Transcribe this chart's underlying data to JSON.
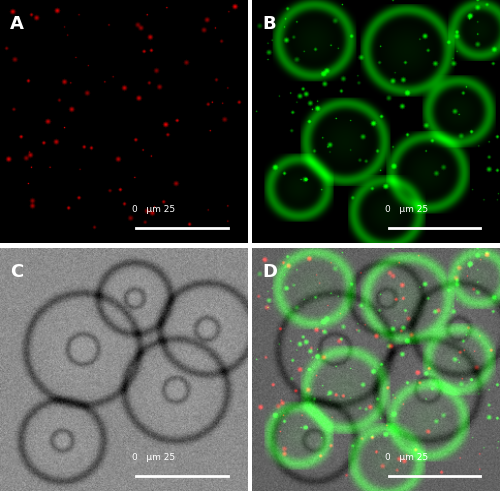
{
  "fig_width": 5.0,
  "fig_height": 4.91,
  "dpi": 100,
  "panels": [
    "A",
    "B",
    "C",
    "D"
  ],
  "panel_label_color": "white",
  "panel_label_fontsize": 13,
  "scale_bar_color": "white",
  "scale_bar_text": "0   μm 25",
  "border_color": "white",
  "border_linewidth": 1.0,
  "bg_A": "#000000",
  "bg_B": "#000000",
  "bg_C": "#808080",
  "bg_D": "#404030",
  "red_dot_count": 80,
  "green_intensity": 0.6
}
